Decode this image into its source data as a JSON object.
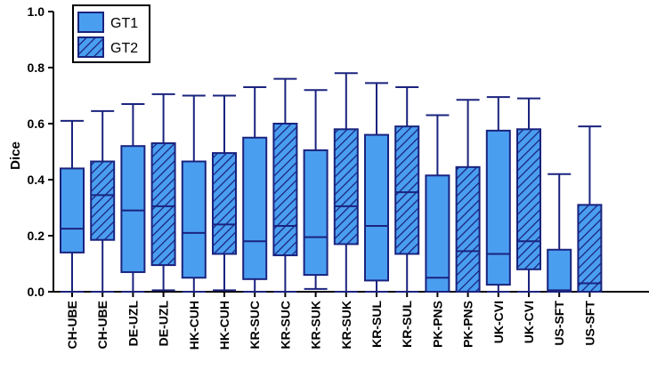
{
  "chart_data": {
    "type": "box",
    "ylabel": "Dice",
    "xlabel": "",
    "ylim": [
      0,
      1.0
    ],
    "yticks": [
      "0.0",
      "0.2",
      "0.4",
      "0.6",
      "0.8",
      "1.0"
    ],
    "grid": false,
    "legend_position": "top-left",
    "colors": {
      "fill": "#4a9ef0",
      "stroke": "#1a237e",
      "hatch": "#1a237e"
    },
    "series": [
      {
        "name": "GT1",
        "pattern": "solid"
      },
      {
        "name": "GT2",
        "pattern": "hatched"
      }
    ],
    "categories": [
      "CH-UBE",
      "CH-UBE",
      "DE-UZL",
      "DE-UZL",
      "HK-CUH",
      "HK-CUH",
      "KR-SUC",
      "KR-SUC",
      "KR-SUK",
      "KR-SUK",
      "KR-SUL",
      "KR-SUL",
      "PK-PNS",
      "PK-PNS",
      "UK-CVI",
      "UK-CVI",
      "US-SFT",
      "US-SFT"
    ],
    "boxes": [
      {
        "category": "CH-UBE",
        "series": "GT1",
        "min": 0.0,
        "q1": 0.14,
        "median": 0.225,
        "q3": 0.44,
        "max": 0.61
      },
      {
        "category": "CH-UBE",
        "series": "GT2",
        "min": 0.0,
        "q1": 0.185,
        "median": 0.345,
        "q3": 0.465,
        "max": 0.645
      },
      {
        "category": "DE-UZL",
        "series": "GT1",
        "min": 0.0,
        "q1": 0.07,
        "median": 0.29,
        "q3": 0.52,
        "max": 0.67
      },
      {
        "category": "DE-UZL",
        "series": "GT2",
        "min": 0.005,
        "q1": 0.095,
        "median": 0.305,
        "q3": 0.53,
        "max": 0.705
      },
      {
        "category": "HK-CUH",
        "series": "GT1",
        "min": 0.0,
        "q1": 0.05,
        "median": 0.21,
        "q3": 0.465,
        "max": 0.7
      },
      {
        "category": "HK-CUH",
        "series": "GT2",
        "min": 0.005,
        "q1": 0.135,
        "median": 0.24,
        "q3": 0.495,
        "max": 0.7
      },
      {
        "category": "KR-SUC",
        "series": "GT1",
        "min": 0.0,
        "q1": 0.045,
        "median": 0.18,
        "q3": 0.55,
        "max": 0.73
      },
      {
        "category": "KR-SUC",
        "series": "GT2",
        "min": 0.0,
        "q1": 0.13,
        "median": 0.235,
        "q3": 0.6,
        "max": 0.76
      },
      {
        "category": "KR-SUK",
        "series": "GT1",
        "min": 0.01,
        "q1": 0.06,
        "median": 0.195,
        "q3": 0.505,
        "max": 0.72
      },
      {
        "category": "KR-SUK",
        "series": "GT2",
        "min": 0.0,
        "q1": 0.17,
        "median": 0.305,
        "q3": 0.58,
        "max": 0.78
      },
      {
        "category": "KR-SUL",
        "series": "GT1",
        "min": 0.0,
        "q1": 0.04,
        "median": 0.235,
        "q3": 0.56,
        "max": 0.745
      },
      {
        "category": "KR-SUL",
        "series": "GT2",
        "min": 0.0,
        "q1": 0.135,
        "median": 0.355,
        "q3": 0.59,
        "max": 0.73
      },
      {
        "category": "PK-PNS",
        "series": "GT1",
        "min": 0.0,
        "q1": 0.0,
        "median": 0.05,
        "q3": 0.415,
        "max": 0.63
      },
      {
        "category": "PK-PNS",
        "series": "GT2",
        "min": 0.0,
        "q1": 0.0,
        "median": 0.145,
        "q3": 0.445,
        "max": 0.685
      },
      {
        "category": "UK-CVI",
        "series": "GT1",
        "min": 0.0,
        "q1": 0.025,
        "median": 0.135,
        "q3": 0.575,
        "max": 0.695
      },
      {
        "category": "UK-CVI",
        "series": "GT2",
        "min": 0.0,
        "q1": 0.08,
        "median": 0.18,
        "q3": 0.58,
        "max": 0.69
      },
      {
        "category": "US-SFT",
        "series": "GT1",
        "min": 0.0,
        "q1": 0.0,
        "median": 0.005,
        "q3": 0.15,
        "max": 0.42
      },
      {
        "category": "US-SFT",
        "series": "GT2",
        "min": 0.0,
        "q1": 0.0,
        "median": 0.03,
        "q3": 0.31,
        "max": 0.59
      }
    ]
  }
}
